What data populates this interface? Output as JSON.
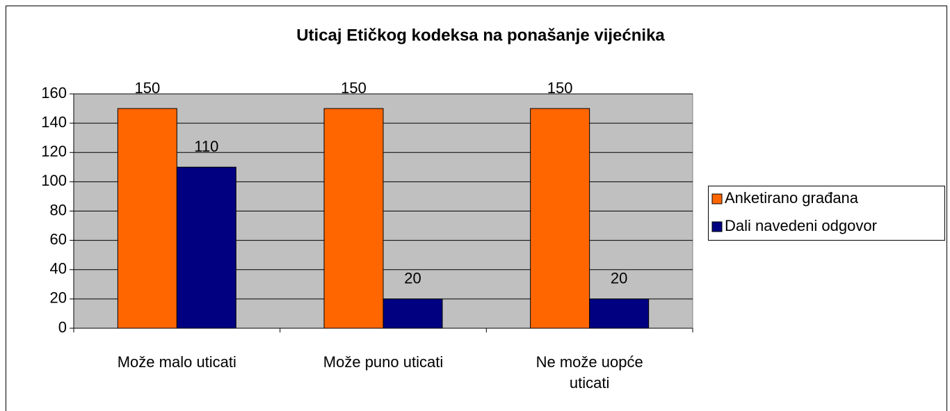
{
  "chart_data": {
    "type": "bar",
    "title": "Uticaj Etičkog kodeksa na ponašanje vijećnika",
    "categories": [
      "Može malo uticati",
      "Može puno uticati",
      "Ne može uopće uticati"
    ],
    "series": [
      {
        "name": "Anketirano građana",
        "color": "#ff6600",
        "values": [
          150,
          150,
          150
        ]
      },
      {
        "name": "Dali navedeni odgovor",
        "color": "#000080",
        "values": [
          110,
          20,
          20
        ]
      }
    ],
    "ylim": [
      0,
      160
    ],
    "yticks": [
      0,
      20,
      40,
      60,
      80,
      100,
      120,
      140,
      160
    ],
    "grid": true,
    "legend": "right",
    "plot_background": "#c0c0c0"
  }
}
